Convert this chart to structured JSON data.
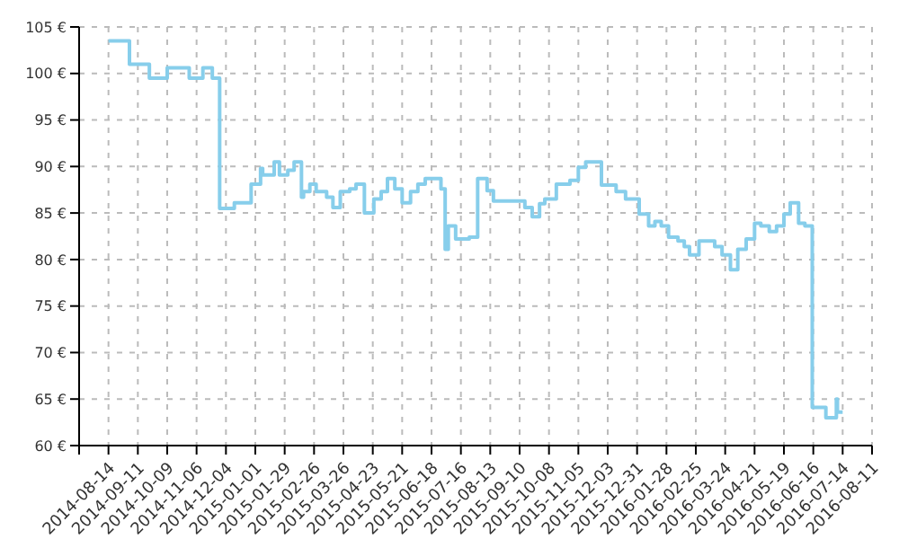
{
  "chart_data": {
    "type": "step",
    "xlim": [
      "2014-07-17",
      "2016-08-11"
    ],
    "xticks": [
      {
        "value": "2014-07-17",
        "label": null
      },
      "2014-08-14",
      "2014-09-11",
      "2014-10-09",
      "2014-11-06",
      "2014-12-04",
      "2015-01-01",
      "2015-01-29",
      "2015-02-26",
      "2015-03-26",
      "2015-04-23",
      "2015-05-21",
      "2015-06-18",
      "2015-07-16",
      "2015-08-13",
      "2015-09-10",
      "2015-10-08",
      "2015-11-05",
      "2015-12-03",
      "2015-12-31",
      "2016-01-28",
      "2016-02-25",
      "2016-03-24",
      "2016-04-21",
      "2016-05-19",
      "2016-06-16",
      "2016-07-14",
      "2016-08-11"
    ],
    "ylim": [
      60,
      105
    ],
    "yticks": [
      {
        "value": 60,
        "label": "60 €"
      },
      {
        "value": 65,
        "label": "65 €"
      },
      {
        "value": 70,
        "label": "70 €"
      },
      {
        "value": 75,
        "label": "75 €"
      },
      {
        "value": 80,
        "label": "80 €"
      },
      {
        "value": 85,
        "label": "85 €"
      },
      {
        "value": 90,
        "label": "90 €"
      },
      {
        "value": 95,
        "label": "95 €"
      },
      {
        "value": 100,
        "label": "100 €"
      },
      {
        "value": 105,
        "label": "105 €"
      }
    ],
    "grid": true,
    "line_style": "solid",
    "marker": "none",
    "series": [
      {
        "color": "#87ceeb",
        "x": [
          "2014-08-14",
          "2014-09-03",
          "2014-09-22",
          "2014-10-09",
          "2014-10-30",
          "2014-11-12",
          "2014-11-21",
          "2014-11-28",
          "2014-12-12",
          "2014-12-28",
          "2015-01-06",
          "2015-01-08",
          "2015-01-19",
          "2015-01-24",
          "2015-02-01",
          "2015-02-07",
          "2015-02-14",
          "2015-02-16",
          "2015-02-22",
          "2015-02-28",
          "2015-03-10",
          "2015-03-16",
          "2015-03-23",
          "2015-04-01",
          "2015-04-07",
          "2015-04-15",
          "2015-04-24",
          "2015-05-01",
          "2015-05-07",
          "2015-05-14",
          "2015-05-21",
          "2015-05-29",
          "2015-06-05",
          "2015-06-12",
          "2015-06-27",
          "2015-07-01",
          "2015-07-04",
          "2015-07-11",
          "2015-07-24",
          "2015-08-01",
          "2015-08-10",
          "2015-08-16",
          "2015-09-15",
          "2015-09-22",
          "2015-09-29",
          "2015-10-04",
          "2015-10-15",
          "2015-10-28",
          "2015-11-05",
          "2015-11-12",
          "2015-11-27",
          "2015-12-11",
          "2015-12-20",
          "2016-01-02",
          "2016-01-11",
          "2016-01-17",
          "2016-01-23",
          "2016-01-30",
          "2016-02-08",
          "2016-02-14",
          "2016-02-19",
          "2016-02-28",
          "2016-03-14",
          "2016-03-21",
          "2016-03-29",
          "2016-04-05",
          "2016-04-13",
          "2016-04-21",
          "2016-04-27",
          "2016-05-05",
          "2016-05-12",
          "2016-05-19",
          "2016-05-25",
          "2016-06-02",
          "2016-06-08",
          "2016-06-15",
          "2016-06-28",
          "2016-07-08",
          "2016-07-09",
          "2016-07-14"
        ],
        "values": [
          103.5,
          101,
          99.5,
          100.6,
          99.5,
          100.6,
          99.5,
          85.5,
          86.1,
          88.1,
          89.8,
          89.1,
          90.5,
          89.1,
          89.6,
          90.5,
          86.7,
          87.3,
          88.1,
          87.3,
          86.7,
          85.6,
          87.3,
          87.6,
          88.1,
          85,
          86.5,
          87.3,
          88.7,
          87.6,
          86.1,
          87.3,
          88.1,
          88.7,
          87.6,
          81.1,
          83.6,
          82.2,
          82.4,
          88.7,
          87.4,
          86.3,
          85.6,
          84.6,
          86,
          86.5,
          88.1,
          88.5,
          89.9,
          90.5,
          88,
          87.3,
          86.5,
          84.9,
          83.6,
          84.1,
          83.6,
          82.4,
          82,
          81.4,
          80.5,
          82,
          81.4,
          80.5,
          78.9,
          81.1,
          82.2,
          83.9,
          83.6,
          83,
          83.6,
          84.9,
          86.1,
          83.9,
          83.6,
          64.1,
          63,
          65,
          63.6,
          63.6
        ]
      }
    ]
  }
}
